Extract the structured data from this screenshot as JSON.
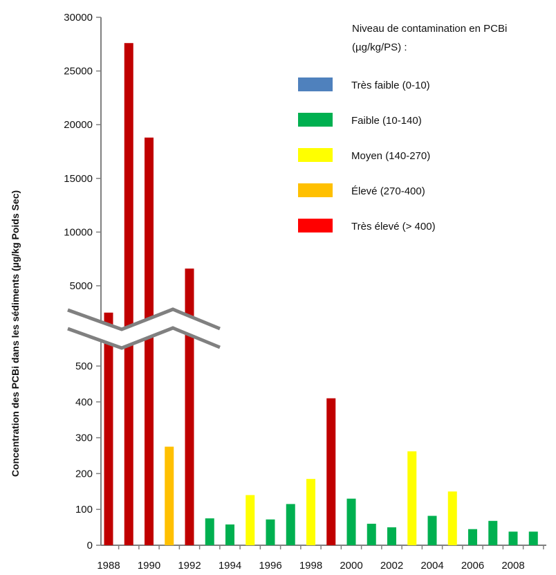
{
  "chart_data": {
    "type": "bar",
    "ylabel": "Concentration des PCBi  dans les sédiments (µg/kg Poids Sec)",
    "axis_break": {
      "lower_range": [
        0,
        500
      ],
      "upper_range": [
        5000,
        30000
      ]
    },
    "y_ticks_lower": [
      0,
      100,
      200,
      300,
      400,
      500
    ],
    "y_ticks_upper": [
      5000,
      10000,
      15000,
      20000,
      25000,
      30000
    ],
    "x_tick_labels": [
      "1988",
      "1990",
      "1992",
      "1994",
      "1996",
      "1998",
      "2000",
      "2002",
      "2004",
      "2006",
      "2008"
    ],
    "categories": [
      "1988",
      "1989",
      "1990",
      "1991",
      "1992",
      "1993",
      "1994",
      "1995",
      "1996",
      "1997",
      "1998",
      "1999",
      "2000",
      "2001",
      "2002",
      "2003",
      "2004",
      "2005",
      "2006",
      "2007",
      "2008",
      "2009"
    ],
    "values": [
      2500,
      27600,
      18800,
      275,
      6600,
      75,
      58,
      140,
      72,
      115,
      185,
      410,
      130,
      60,
      50,
      262,
      82,
      150,
      45,
      68,
      38,
      38
    ],
    "levels": [
      "tres_eleve",
      "tres_eleve",
      "tres_eleve",
      "eleve",
      "tres_eleve",
      "faible",
      "faible",
      "moyen",
      "faible",
      "faible",
      "moyen",
      "tres_eleve",
      "faible",
      "faible",
      "faible",
      "moyen",
      "faible",
      "moyen",
      "faible",
      "faible",
      "faible",
      "faible"
    ],
    "legend": {
      "title": "Niveau de contamination  en PCBi (µg/kg/PS) :",
      "title_line1": "Niveau de contamination  en PCBi",
      "title_line2": "(µg/kg/PS) :",
      "entries": [
        {
          "key": "tres_faible",
          "label": "Très faible (0-10)",
          "color": "#4f81bd"
        },
        {
          "key": "faible",
          "label": "Faible (10-140)",
          "color": "#00b050"
        },
        {
          "key": "moyen",
          "label": "Moyen (140-270)",
          "color": "#ffff00"
        },
        {
          "key": "eleve",
          "label": "Élevé (270-400)",
          "color": "#ffc000"
        },
        {
          "key": "tres_eleve",
          "label": "Très élevé (> 400)",
          "color": "#ff0000"
        }
      ]
    },
    "bar_colors": {
      "tres_faible": "#4f81bd",
      "faible": "#00b050",
      "moyen": "#ffff00",
      "eleve": "#ffc000",
      "tres_eleve": "#c00000"
    },
    "legend_position": "top-right"
  }
}
